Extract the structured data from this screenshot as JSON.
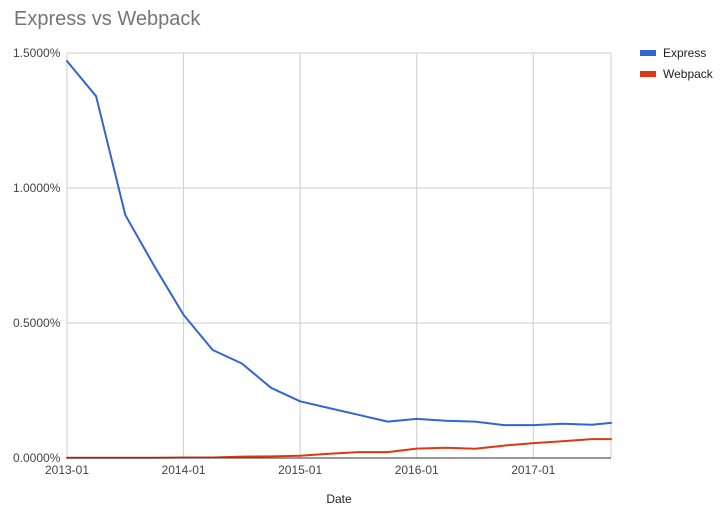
{
  "chart_data": {
    "type": "line",
    "title": "Express vs Webpack",
    "xlabel": "Date",
    "ylabel": "",
    "ylim": [
      0,
      1.5
    ],
    "y_ticks": [
      0,
      0.5,
      1.0,
      1.5
    ],
    "y_tick_labels": [
      "0.0000%",
      "0.5000%",
      "1.0000%",
      "1.5000%"
    ],
    "x_ticks": [
      "2013-01",
      "2014-01",
      "2015-01",
      "2016-01",
      "2017-01"
    ],
    "xlim": [
      "2013-01",
      "2017-09"
    ],
    "x": [
      "2013-01",
      "2013-04",
      "2013-07",
      "2013-10",
      "2014-01",
      "2014-04",
      "2014-07",
      "2014-10",
      "2015-01",
      "2015-04",
      "2015-07",
      "2015-10",
      "2016-01",
      "2016-04",
      "2016-07",
      "2016-10",
      "2017-01",
      "2017-04",
      "2017-07",
      "2017-09"
    ],
    "grid": true,
    "legend_position": "top-right",
    "series": [
      {
        "name": "Express",
        "color": "#3366cc",
        "values": [
          1.47,
          1.34,
          0.9,
          0.71,
          0.53,
          0.4,
          0.35,
          0.26,
          0.21,
          0.185,
          0.16,
          0.135,
          0.145,
          0.138,
          0.135,
          0.122,
          0.122,
          0.127,
          0.123,
          0.13
        ]
      },
      {
        "name": "Webpack",
        "color": "#dc3912",
        "values": [
          0.001,
          0.0008,
          0.0008,
          0.001,
          0.002,
          0.002,
          0.005,
          0.006,
          0.008,
          0.016,
          0.022,
          0.022,
          0.035,
          0.038,
          0.034,
          0.046,
          0.055,
          0.062,
          0.07,
          0.07
        ]
      }
    ]
  }
}
